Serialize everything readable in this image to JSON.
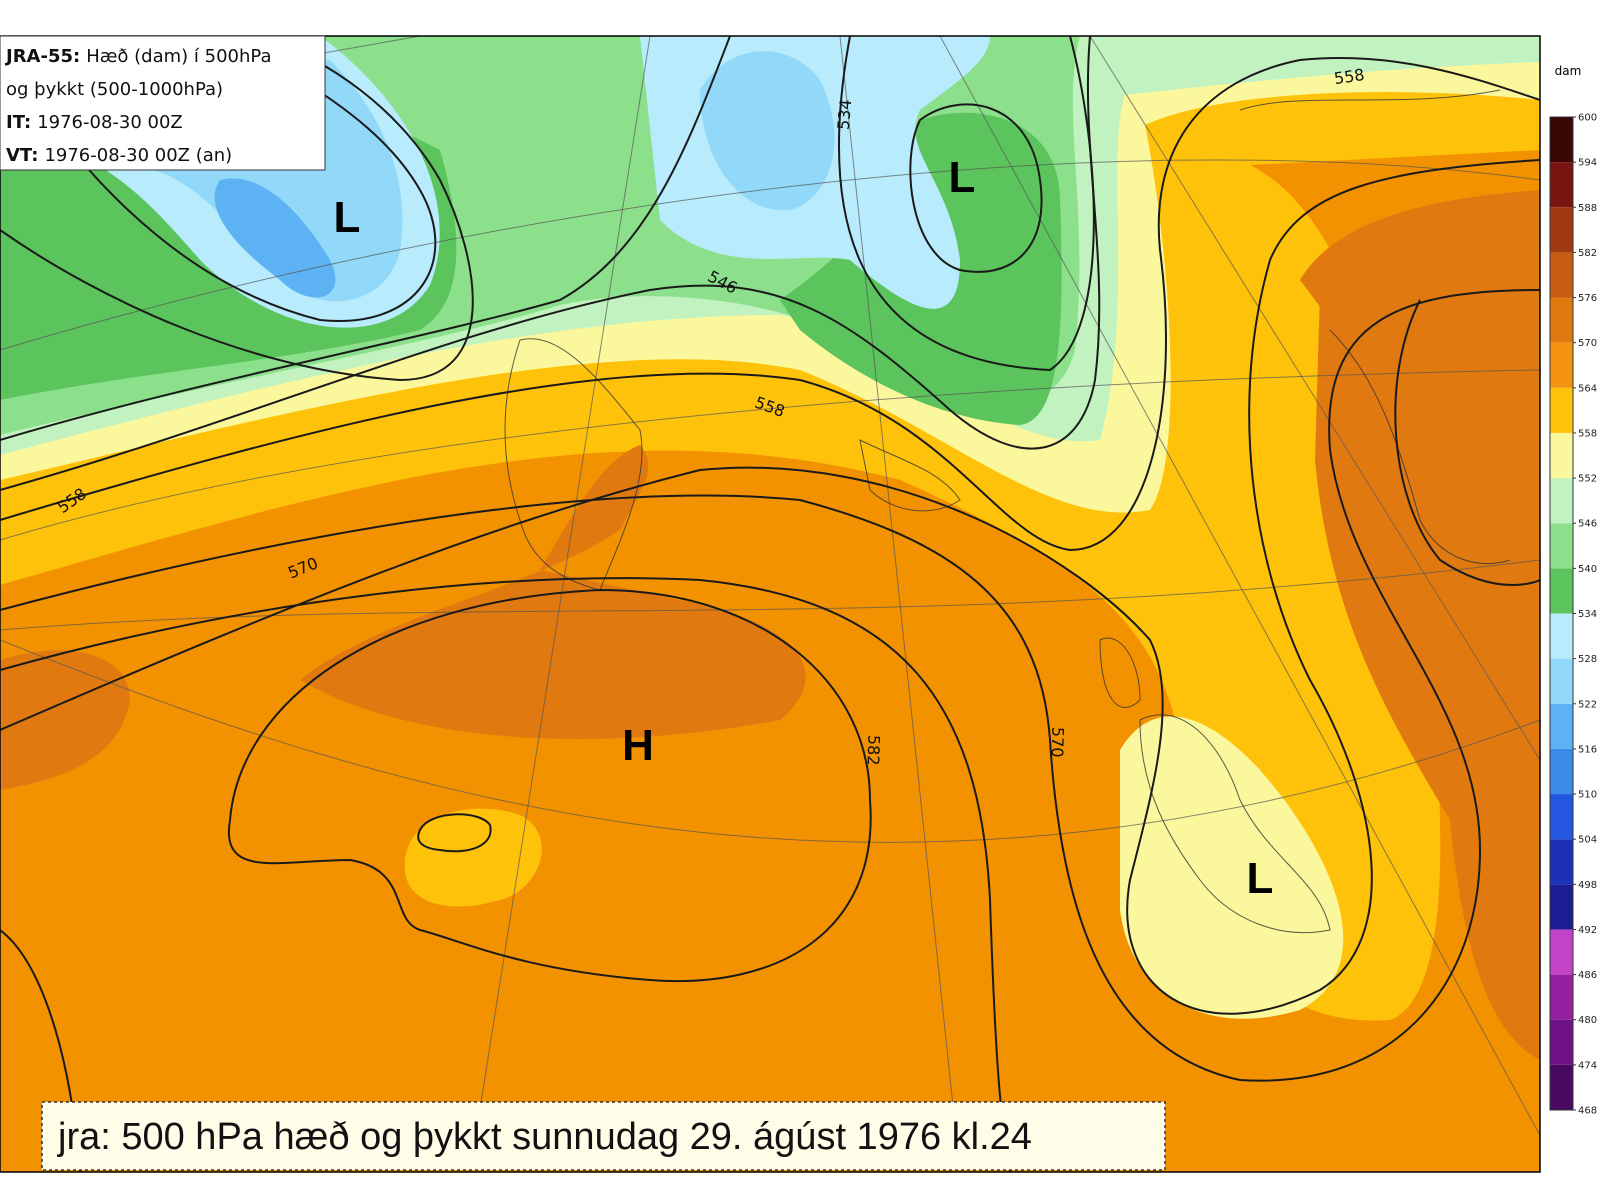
{
  "info_box": {
    "lines": [
      {
        "bold": "JRA-55:",
        "text": "Hæð (dam) í 500hPa"
      },
      {
        "text": "og þykkt (500-1000hPa)"
      },
      {
        "bold": "IT:",
        "text": "1976-08-30 00Z"
      },
      {
        "bold": "VT:",
        "text": "1976-08-30 00Z (an)"
      }
    ]
  },
  "systems": [
    "L",
    "L",
    "H",
    "L"
  ],
  "contour_labels": [
    558,
    546,
    534,
    558,
    558,
    570,
    582,
    570
  ],
  "colorbar": {
    "unit": "dam",
    "ticks": [
      468,
      474,
      480,
      486,
      492,
      498,
      504,
      510,
      516,
      522,
      528,
      534,
      540,
      546,
      552,
      558,
      564,
      570,
      576,
      582,
      588,
      594,
      600
    ],
    "colors": [
      "#4b0a62",
      "#6e1286",
      "#93209e",
      "#c444c8",
      "#1a1e92",
      "#1c30b8",
      "#2456e0",
      "#3a8ce8",
      "#5cb2f2",
      "#92d8f8",
      "#b8ecfc",
      "#5cc45c",
      "#8ce08c",
      "#c2f2c0",
      "#fbf79c",
      "#ffc20a",
      "#f59410",
      "#e07a10",
      "#c85c14",
      "#a03a10",
      "#7a1410",
      "#3a0606"
    ]
  },
  "caption": "jra: 500 hPa hæð og þykkt sunnudag 29. ágúst 1976 kl.24"
}
